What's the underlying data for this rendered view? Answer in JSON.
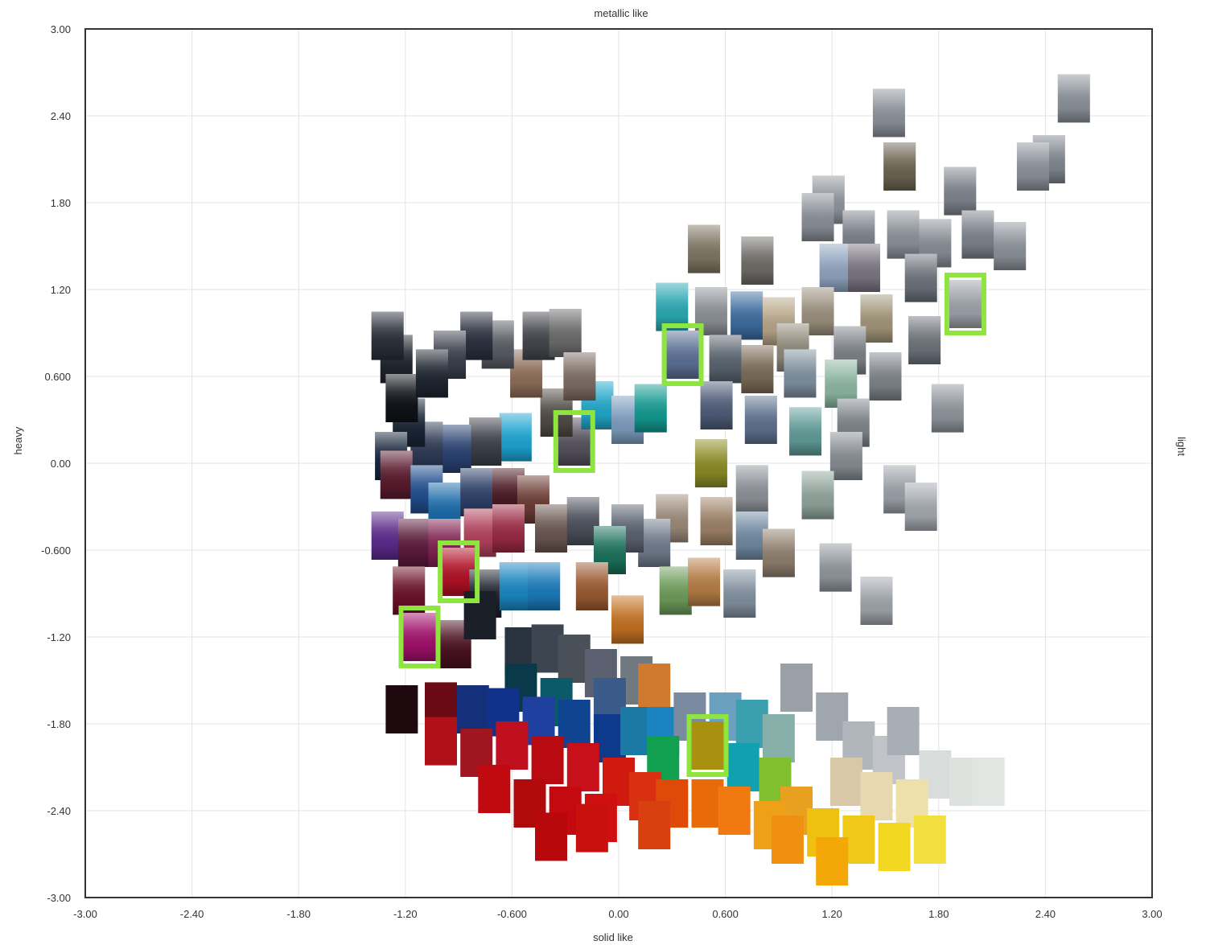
{
  "chart_data": {
    "type": "scatter",
    "title": "",
    "top_label": "metallic like",
    "bottom_label": "solid like",
    "left_label": "heavy",
    "right_label": "light",
    "xlim": [
      -3.0,
      3.0
    ],
    "ylim": [
      -3.0,
      3.0
    ],
    "grid": true,
    "x_ticks": [
      "-3.00",
      "-2.40",
      "-1.80",
      "-1.20",
      "-0.600",
      "0.00",
      "0.600",
      "1.20",
      "1.80",
      "2.40",
      "3.00"
    ],
    "y_ticks": [
      "3.00",
      "2.40",
      "1.80",
      "1.20",
      "0.600",
      "0.00",
      "-0.600",
      "-1.20",
      "-1.80",
      "-2.40",
      "-3.00"
    ],
    "highlight_color": "#8ee53f",
    "points": [
      {
        "x": 2.56,
        "y": 2.52,
        "c": "#8a9098",
        "m": 1
      },
      {
        "x": 2.42,
        "y": 2.1,
        "c": "#7e858d",
        "m": 1
      },
      {
        "x": 2.33,
        "y": 2.05,
        "c": "#8a9098",
        "m": 1
      },
      {
        "x": 1.52,
        "y": 2.42,
        "c": "#8a9098",
        "m": 1
      },
      {
        "x": 1.58,
        "y": 2.05,
        "c": "#6b6350",
        "m": 1
      },
      {
        "x": 1.92,
        "y": 1.88,
        "c": "#7c828b",
        "m": 1
      },
      {
        "x": 1.18,
        "y": 1.82,
        "c": "#8e949c",
        "m": 1
      },
      {
        "x": 1.12,
        "y": 1.7,
        "c": "#878d95",
        "m": 1
      },
      {
        "x": 1.35,
        "y": 1.58,
        "c": "#7a8089",
        "m": 1
      },
      {
        "x": 1.6,
        "y": 1.58,
        "c": "#8a9098",
        "m": 1
      },
      {
        "x": 1.78,
        "y": 1.52,
        "c": "#868c94",
        "m": 1
      },
      {
        "x": 2.02,
        "y": 1.58,
        "c": "#7b818a",
        "m": 1
      },
      {
        "x": 2.2,
        "y": 1.5,
        "c": "#8a9098",
        "m": 1
      },
      {
        "x": 0.48,
        "y": 1.48,
        "c": "#7d7462",
        "m": 1
      },
      {
        "x": 0.78,
        "y": 1.4,
        "c": "#6e6a66",
        "m": 1
      },
      {
        "x": 1.22,
        "y": 1.35,
        "c": "#8ea2bd",
        "m": 1
      },
      {
        "x": 1.38,
        "y": 1.35,
        "c": "#7a7480",
        "m": 1
      },
      {
        "x": 1.7,
        "y": 1.28,
        "c": "#6a7079",
        "m": 1
      },
      {
        "x": 1.95,
        "y": 1.1,
        "c": "#9ba1a8",
        "m": 1,
        "hl": true
      },
      {
        "x": 0.3,
        "y": 1.08,
        "c": "#2aa7b0",
        "m": 1
      },
      {
        "x": 0.52,
        "y": 1.05,
        "c": "#8a8f95",
        "m": 1
      },
      {
        "x": 0.72,
        "y": 1.02,
        "c": "#3d6b9e",
        "m": 1
      },
      {
        "x": 0.9,
        "y": 0.98,
        "c": "#b5a386",
        "m": 1
      },
      {
        "x": 1.12,
        "y": 1.05,
        "c": "#9a8f7c",
        "m": 1
      },
      {
        "x": 1.45,
        "y": 1.0,
        "c": "#a09478",
        "m": 1
      },
      {
        "x": 1.72,
        "y": 0.85,
        "c": "#6c7279",
        "m": 1
      },
      {
        "x": 0.98,
        "y": 0.8,
        "c": "#8d8778",
        "m": 1
      },
      {
        "x": 1.3,
        "y": 0.78,
        "c": "#7b8086",
        "m": 1
      },
      {
        "x": 0.36,
        "y": 0.75,
        "c": "#5a6f94",
        "m": 1,
        "hl": true
      },
      {
        "x": 0.6,
        "y": 0.72,
        "c": "#57626d",
        "m": 1
      },
      {
        "x": 0.78,
        "y": 0.65,
        "c": "#7a6a55",
        "m": 1
      },
      {
        "x": 1.02,
        "y": 0.62,
        "c": "#7d8f9e",
        "m": 1
      },
      {
        "x": 1.25,
        "y": 0.55,
        "c": "#8ab49e",
        "m": 1
      },
      {
        "x": 1.5,
        "y": 0.6,
        "c": "#7c8188",
        "m": 1
      },
      {
        "x": 1.85,
        "y": 0.38,
        "c": "#8e949b",
        "m": 1
      },
      {
        "x": 0.55,
        "y": 0.4,
        "c": "#4f5c78",
        "m": 1
      },
      {
        "x": 0.8,
        "y": 0.3,
        "c": "#5d6f8c",
        "m": 1
      },
      {
        "x": 1.05,
        "y": 0.22,
        "c": "#5f9a96",
        "m": 1
      },
      {
        "x": 1.32,
        "y": 0.28,
        "c": "#7c8288",
        "m": 1
      },
      {
        "x": 1.28,
        "y": 0.05,
        "c": "#858b92",
        "m": 1
      },
      {
        "x": 0.52,
        "y": 0.0,
        "c": "#8a8a25",
        "m": 1
      },
      {
        "x": 0.75,
        "y": -0.18,
        "c": "#8b9096",
        "m": 1
      },
      {
        "x": 1.12,
        "y": -0.22,
        "c": "#8ea39a",
        "m": 1
      },
      {
        "x": 1.58,
        "y": -0.18,
        "c": "#9aa0a7",
        "m": 1
      },
      {
        "x": 1.7,
        "y": -0.3,
        "c": "#a2a7ae",
        "m": 1
      },
      {
        "x": 0.3,
        "y": -0.38,
        "c": "#9a8877",
        "m": 1
      },
      {
        "x": 0.55,
        "y": -0.4,
        "c": "#9b8066",
        "m": 1
      },
      {
        "x": 0.75,
        "y": -0.5,
        "c": "#6f88a0",
        "m": 1
      },
      {
        "x": 0.9,
        "y": -0.62,
        "c": "#8d7d6c",
        "m": 1
      },
      {
        "x": 1.22,
        "y": -0.72,
        "c": "#8f959c",
        "m": 1
      },
      {
        "x": 1.45,
        "y": -0.95,
        "c": "#9ea3aa",
        "m": 1
      },
      {
        "x": 0.2,
        "y": -0.55,
        "c": "#6e7a8a",
        "m": 1
      },
      {
        "x": 0.32,
        "y": -0.88,
        "c": "#6c9a58",
        "m": 1
      },
      {
        "x": 0.48,
        "y": -0.82,
        "c": "#b47c45",
        "m": 1
      },
      {
        "x": 0.68,
        "y": -0.9,
        "c": "#7f8f9e",
        "m": 1
      },
      {
        "x": 0.05,
        "y": -1.08,
        "c": "#c27020",
        "m": 1
      },
      {
        "x": -0.25,
        "y": 0.15,
        "c": "#54505c",
        "m": 1,
        "hl": true
      },
      {
        "x": -0.12,
        "y": 0.4,
        "c": "#22a6c8",
        "m": 1
      },
      {
        "x": 0.05,
        "y": 0.3,
        "c": "#7c9bbd",
        "m": 1
      },
      {
        "x": 0.18,
        "y": 0.38,
        "c": "#139990",
        "m": 1
      },
      {
        "x": -0.35,
        "y": 0.35,
        "c": "#4f4a44",
        "m": 1
      },
      {
        "x": -0.52,
        "y": 0.62,
        "c": "#8d6c58",
        "m": 1
      },
      {
        "x": -0.45,
        "y": 0.88,
        "c": "#43464c",
        "m": 1
      },
      {
        "x": -0.3,
        "y": 0.9,
        "c": "#6a6a6a",
        "m": 1
      },
      {
        "x": -0.22,
        "y": 0.6,
        "c": "#7c6b62",
        "m": 1
      },
      {
        "x": -0.68,
        "y": 0.82,
        "c": "#565a62",
        "m": 1
      },
      {
        "x": -0.8,
        "y": 0.88,
        "c": "#2c3140",
        "m": 1
      },
      {
        "x": -0.95,
        "y": 0.75,
        "c": "#3a3f4c",
        "m": 1
      },
      {
        "x": -0.58,
        "y": 0.18,
        "c": "#1ca3d0",
        "m": 1
      },
      {
        "x": -0.75,
        "y": 0.15,
        "c": "#3b3f48",
        "m": 1
      },
      {
        "x": -0.92,
        "y": 0.1,
        "c": "#294070",
        "m": 1
      },
      {
        "x": -1.08,
        "y": 0.12,
        "c": "#2e3a55",
        "m": 1
      },
      {
        "x": -1.18,
        "y": 0.28,
        "c": "#1a2535",
        "m": 1
      },
      {
        "x": -1.25,
        "y": 0.72,
        "c": "#20242c",
        "m": 1
      },
      {
        "x": -1.3,
        "y": 0.88,
        "c": "#2a2f38",
        "m": 1
      },
      {
        "x": -1.22,
        "y": 0.45,
        "c": "#101418",
        "m": 1
      },
      {
        "x": -1.05,
        "y": 0.62,
        "c": "#1e2530",
        "m": 1
      },
      {
        "x": -1.28,
        "y": 0.05,
        "c": "#15233a",
        "m": 1
      },
      {
        "x": -1.25,
        "y": -0.08,
        "c": "#5a1a2e",
        "m": 1
      },
      {
        "x": -1.08,
        "y": -0.18,
        "c": "#1f4d8c",
        "m": 1
      },
      {
        "x": -0.98,
        "y": -0.3,
        "c": "#1a6aa8",
        "m": 1
      },
      {
        "x": -0.8,
        "y": -0.2,
        "c": "#2d3f68",
        "m": 1
      },
      {
        "x": -0.62,
        "y": -0.2,
        "c": "#4a1822",
        "m": 1
      },
      {
        "x": -0.48,
        "y": -0.25,
        "c": "#6b3a33",
        "m": 1
      },
      {
        "x": -0.38,
        "y": -0.45,
        "c": "#6a5550",
        "m": 1
      },
      {
        "x": -0.2,
        "y": -0.4,
        "c": "#4a4f5a",
        "m": 1
      },
      {
        "x": 0.05,
        "y": -0.45,
        "c": "#5a6270",
        "m": 1
      },
      {
        "x": -0.05,
        "y": -0.6,
        "c": "#1a6f5a",
        "m": 1
      },
      {
        "x": -1.3,
        "y": -0.5,
        "c": "#5a2a8a",
        "m": 1
      },
      {
        "x": -1.15,
        "y": -0.55,
        "c": "#5a1a3a",
        "m": 1
      },
      {
        "x": -0.98,
        "y": -0.55,
        "c": "#802050",
        "m": 1
      },
      {
        "x": -0.78,
        "y": -0.48,
        "c": "#b0405a",
        "m": 1
      },
      {
        "x": -0.62,
        "y": -0.45,
        "c": "#9a2a45",
        "m": 1
      },
      {
        "x": -0.9,
        "y": -0.75,
        "c": "#b01025",
        "m": 1,
        "hl": true
      },
      {
        "x": -0.75,
        "y": -0.9,
        "c": "#1a1f2a",
        "m": 1
      },
      {
        "x": -0.58,
        "y": -0.85,
        "c": "#1a86c0",
        "m": 1
      },
      {
        "x": -0.42,
        "y": -0.85,
        "c": "#1a7ab8",
        "m": 1
      },
      {
        "x": -0.15,
        "y": -0.85,
        "c": "#9a5a30",
        "m": 1
      },
      {
        "x": -1.18,
        "y": -0.88,
        "c": "#6a1025",
        "m": 1
      },
      {
        "x": -1.12,
        "y": -1.2,
        "c": "#a0106a",
        "m": 1,
        "hl": true
      },
      {
        "x": -0.92,
        "y": -1.25,
        "c": "#4a1020",
        "m": 1
      },
      {
        "x": -0.78,
        "y": -1.05,
        "c": "#1a1f28",
        "m": 0
      },
      {
        "x": -0.55,
        "y": -1.3,
        "c": "#2a3440",
        "m": 0
      },
      {
        "x": -0.4,
        "y": -1.28,
        "c": "#3c4550",
        "m": 0
      },
      {
        "x": -0.25,
        "y": -1.35,
        "c": "#4a5058",
        "m": 0
      },
      {
        "x": -0.1,
        "y": -1.45,
        "c": "#5a6070",
        "m": 0
      },
      {
        "x": 0.1,
        "y": -1.5,
        "c": "#707880",
        "m": 0
      },
      {
        "x": 0.2,
        "y": -1.55,
        "c": "#d07a30",
        "m": 0
      },
      {
        "x": -0.55,
        "y": -1.55,
        "c": "#0a3a4a",
        "m": 0
      },
      {
        "x": -0.35,
        "y": -1.65,
        "c": "#0a5a6a",
        "m": 0
      },
      {
        "x": -0.05,
        "y": -1.65,
        "c": "#3a5a8a",
        "m": 0
      },
      {
        "x": -1.22,
        "y": -1.7,
        "c": "#1e0a0e",
        "m": 0
      },
      {
        "x": -1.0,
        "y": -1.68,
        "c": "#6a0a15",
        "m": 0
      },
      {
        "x": -0.82,
        "y": -1.7,
        "c": "#14307a",
        "m": 0
      },
      {
        "x": -0.65,
        "y": -1.72,
        "c": "#10328a",
        "m": 0
      },
      {
        "x": -0.45,
        "y": -1.78,
        "c": "#2040a0",
        "m": 0
      },
      {
        "x": -0.25,
        "y": -1.8,
        "c": "#0f4590",
        "m": 0
      },
      {
        "x": -0.05,
        "y": -1.9,
        "c": "#0d3a8a",
        "m": 0
      },
      {
        "x": 0.1,
        "y": -1.85,
        "c": "#1a7aa5",
        "m": 0
      },
      {
        "x": 0.25,
        "y": -1.85,
        "c": "#1a84c0",
        "m": 0
      },
      {
        "x": 0.4,
        "y": -1.75,
        "c": "#7a8aa0",
        "m": 0
      },
      {
        "x": 0.6,
        "y": -1.75,
        "c": "#6aa0c0",
        "m": 0
      },
      {
        "x": 0.75,
        "y": -1.8,
        "c": "#3aa0b0",
        "m": 0
      },
      {
        "x": 0.9,
        "y": -1.9,
        "c": "#88b0aa",
        "m": 0
      },
      {
        "x": 1.0,
        "y": -1.55,
        "c": "#9aa0a8",
        "m": 0
      },
      {
        "x": 1.2,
        "y": -1.75,
        "c": "#a0a6ae",
        "m": 0
      },
      {
        "x": 1.35,
        "y": -1.95,
        "c": "#b0b6bc",
        "m": 0
      },
      {
        "x": 1.52,
        "y": -2.05,
        "c": "#c0c4c8",
        "m": 0
      },
      {
        "x": 1.6,
        "y": -1.85,
        "c": "#a8aeb5",
        "m": 0
      },
      {
        "x": 1.78,
        "y": -2.15,
        "c": "#d8dcda",
        "m": 0
      },
      {
        "x": 1.95,
        "y": -2.2,
        "c": "#dde2de",
        "m": 0
      },
      {
        "x": 2.08,
        "y": -2.2,
        "c": "#e2e6e2",
        "m": 0
      },
      {
        "x": 1.28,
        "y": -2.2,
        "c": "#d8c8a8",
        "m": 0
      },
      {
        "x": 1.45,
        "y": -2.3,
        "c": "#e8d8b0",
        "m": 0
      },
      {
        "x": 1.65,
        "y": -2.35,
        "c": "#eee0a8",
        "m": 0
      },
      {
        "x": 0.5,
        "y": -1.95,
        "c": "#a89010",
        "m": 0,
        "hl": true
      },
      {
        "x": 0.25,
        "y": -2.05,
        "c": "#10a050",
        "m": 0
      },
      {
        "x": 0.7,
        "y": -2.1,
        "c": "#10a0b0",
        "m": 0
      },
      {
        "x": 0.88,
        "y": -2.2,
        "c": "#80c030",
        "m": 0
      },
      {
        "x": 1.0,
        "y": -2.4,
        "c": "#e8a020",
        "m": 0
      },
      {
        "x": -1.0,
        "y": -1.92,
        "c": "#b01018",
        "m": 0
      },
      {
        "x": -0.8,
        "y": -2.0,
        "c": "#a01520",
        "m": 0
      },
      {
        "x": -0.6,
        "y": -1.95,
        "c": "#c01020",
        "m": 0
      },
      {
        "x": -0.4,
        "y": -2.05,
        "c": "#b80a10",
        "m": 0
      },
      {
        "x": -0.2,
        "y": -2.1,
        "c": "#c8101a",
        "m": 0
      },
      {
        "x": 0.0,
        "y": -2.2,
        "c": "#d01a10",
        "m": 0
      },
      {
        "x": 0.15,
        "y": -2.3,
        "c": "#d83010",
        "m": 0
      },
      {
        "x": 0.3,
        "y": -2.35,
        "c": "#e04a08",
        "m": 0
      },
      {
        "x": 0.5,
        "y": -2.35,
        "c": "#e86a08",
        "m": 0
      },
      {
        "x": 0.65,
        "y": -2.4,
        "c": "#f07a10",
        "m": 0
      },
      {
        "x": 0.85,
        "y": -2.5,
        "c": "#f0a018",
        "m": 0
      },
      {
        "x": 1.15,
        "y": -2.55,
        "c": "#f0c010",
        "m": 0
      },
      {
        "x": 1.35,
        "y": -2.6,
        "c": "#f0c818",
        "m": 0
      },
      {
        "x": 1.55,
        "y": -2.65,
        "c": "#f2d820",
        "m": 0
      },
      {
        "x": 1.75,
        "y": -2.6,
        "c": "#f2e040",
        "m": 0
      },
      {
        "x": -0.7,
        "y": -2.25,
        "c": "#c00a10",
        "m": 0
      },
      {
        "x": -0.5,
        "y": -2.35,
        "c": "#b00a0a",
        "m": 0
      },
      {
        "x": -0.3,
        "y": -2.4,
        "c": "#c40a10",
        "m": 0
      },
      {
        "x": -0.1,
        "y": -2.45,
        "c": "#d01010",
        "m": 0
      },
      {
        "x": -0.38,
        "y": -2.58,
        "c": "#b8080c",
        "m": 0
      },
      {
        "x": -0.15,
        "y": -2.52,
        "c": "#c8100c",
        "m": 0
      },
      {
        "x": 0.2,
        "y": -2.5,
        "c": "#d84010",
        "m": 0
      },
      {
        "x": 0.95,
        "y": -2.6,
        "c": "#f09010",
        "m": 0
      },
      {
        "x": 1.2,
        "y": -2.75,
        "c": "#f4a808",
        "m": 0
      }
    ]
  }
}
